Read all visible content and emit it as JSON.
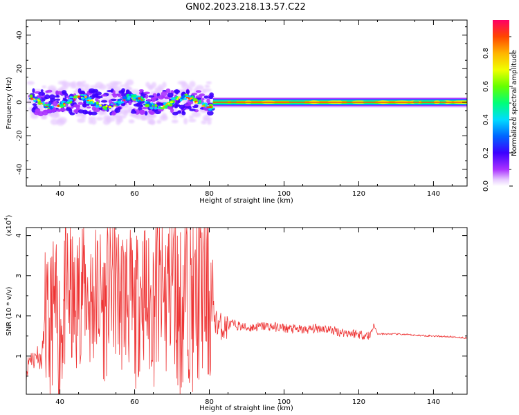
{
  "title": "GN02.2023.218.13.57.C22",
  "chart_data": [
    {
      "type": "heatmap",
      "xlabel": "Height of straight line (km)",
      "ylabel": "Frequency (Hz)",
      "xlim": [
        31,
        149
      ],
      "ylim": [
        -50,
        49
      ],
      "xticks": [
        40,
        60,
        80,
        100,
        120,
        140
      ],
      "yticks": [
        -40,
        -20,
        0,
        20,
        40
      ],
      "colorbar": {
        "label": "Normalized spectral amplitude",
        "range": [
          0.0,
          1.0
        ],
        "ticks": [
          0.0,
          0.2,
          0.4,
          0.6,
          0.8
        ],
        "colors": [
          "#ffffff",
          "#e6c8ff",
          "#aa32ff",
          "#3c00ff",
          "#0064ff",
          "#00dcff",
          "#00ff78",
          "#64ff00",
          "#f0ff00",
          "#ffb400",
          "#ff4600",
          "#ff0064"
        ]
      },
      "segments": [
        {
          "x_range": [
            32,
            81
          ],
          "description": "noisy scattered spectrum",
          "center_freq_hz": 0,
          "spread_hz": 10
        },
        {
          "x_range": [
            81,
            149
          ],
          "description": "narrow band",
          "center_freq_hz": 0,
          "spread_hz": 2
        }
      ],
      "grid": false
    },
    {
      "type": "line",
      "xlabel": "Height of straight line (km)",
      "ylabel": "SNR (10 * v/v)",
      "y_multiplier": "(x10^4)",
      "xlim": [
        31,
        149
      ],
      "ylim": [
        0.05,
        4.2
      ],
      "xticks": [
        40,
        60,
        80,
        100,
        120,
        140
      ],
      "yticks": [
        1,
        2,
        3,
        4
      ],
      "color": "#ee3333",
      "series": [
        {
          "x": [
            31,
            32,
            33,
            34,
            35,
            36,
            37,
            38,
            40,
            42,
            44,
            46,
            48,
            50,
            52,
            54,
            56,
            58,
            60,
            62,
            64,
            66,
            68,
            70,
            72,
            74,
            76,
            78,
            80,
            82,
            84,
            86,
            90,
            95,
            100,
            105,
            110,
            115,
            120,
            123,
            124,
            125,
            130,
            135,
            140,
            145,
            149
          ],
          "y": [
            0.6,
            1.0,
            0.9,
            1.1,
            0.8,
            1.9,
            1.3,
            2.2,
            1.6,
            2.7,
            2.0,
            3.0,
            2.3,
            2.6,
            2.2,
            2.9,
            2.4,
            2.6,
            1.9,
            2.8,
            2.1,
            2.7,
            2.3,
            3.2,
            2.0,
            2.8,
            2.2,
            2.7,
            2.4,
            1.8,
            1.7,
            1.8,
            1.7,
            1.75,
            1.7,
            1.65,
            1.7,
            1.6,
            1.55,
            1.5,
            1.8,
            1.55,
            1.55,
            1.52,
            1.5,
            1.48,
            1.45
          ]
        }
      ],
      "grid": false
    }
  ]
}
